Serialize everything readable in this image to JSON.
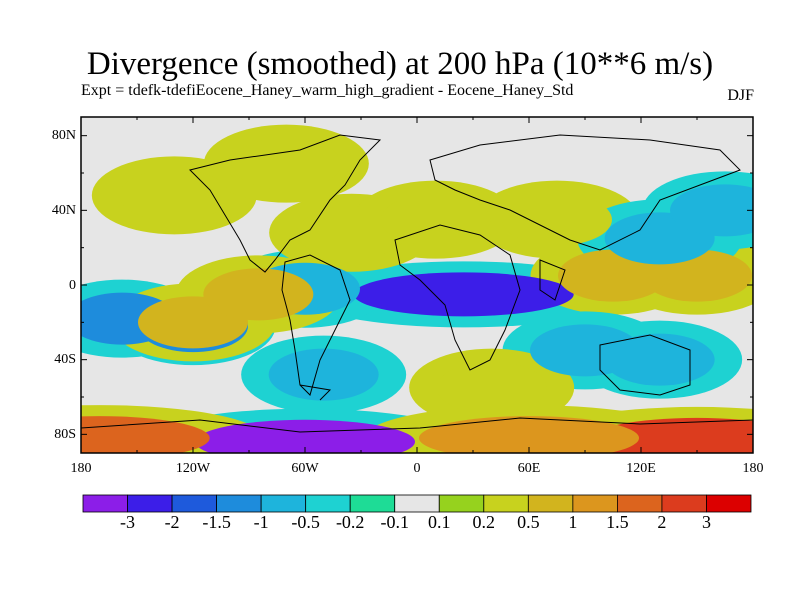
{
  "title": "Divergence (smoothed) at 200 hPa (10**6 m/s)",
  "subtitle": "Expt = tdefk-tdefiEocene_Haney_warm_high_gradient - Eocene_Haney_Std",
  "season": "DJF",
  "lat_labels": [
    "80N",
    "40N",
    "0",
    "40S",
    "80S"
  ],
  "lon_labels": [
    "180",
    "120W",
    "60W",
    "0",
    "60E",
    "120E",
    "180"
  ],
  "colorbar": {
    "labels": [
      "-3",
      "-2",
      "-1.5",
      "-1",
      "-0.5",
      "-0.2",
      "-0.1",
      "0.1",
      "0.2",
      "0.5",
      "1",
      "1.5",
      "2",
      "3"
    ],
    "colors": [
      "#8c1ee8",
      "#3c1ee8",
      "#1e5adc",
      "#1e8cdc",
      "#1eb4dc",
      "#1ed2d2",
      "#1edc96",
      "#e6e6e6",
      "#96d21e",
      "#c8d21e",
      "#d2b41e",
      "#dc961e",
      "#dc641e",
      "#dc3c1e",
      "#dc0000"
    ]
  },
  "chart_data": {
    "type": "heatmap",
    "variable": "Divergence (smoothed) at 200 hPa",
    "units": "10**6 m/s",
    "season": "DJF",
    "projection": "cylindrical equidistant",
    "lon_range": [
      -180,
      180
    ],
    "lat_range": [
      -90,
      90
    ],
    "contour_levels": [
      -3,
      -2,
      -1.5,
      -1,
      -0.5,
      -0.2,
      -0.1,
      0.1,
      0.2,
      0.5,
      1,
      1.5,
      2,
      3
    ],
    "features": [
      {
        "lon": -120,
        "lat": -22,
        "value": -1.0
      },
      {
        "lon": -158,
        "lat": -18,
        "value": -1.0
      },
      {
        "lon": 25,
        "lat": -5,
        "value": -2.0
      },
      {
        "lon": -50,
        "lat": -48,
        "value": -0.5
      },
      {
        "lon": -60,
        "lat": -2,
        "value": -0.5
      },
      {
        "lon": -120,
        "lat": -20,
        "value": 1.0
      },
      {
        "lon": -85,
        "lat": -5,
        "value": 1.0
      },
      {
        "lon": 150,
        "lat": 5,
        "value": 1.0
      },
      {
        "lon": 105,
        "lat": 5,
        "value": 1.0
      },
      {
        "lon": 90,
        "lat": -35,
        "value": -0.5
      },
      {
        "lon": 130,
        "lat": -40,
        "value": -0.5
      },
      {
        "lon": 40,
        "lat": -55,
        "value": 0.5
      },
      {
        "lon": -60,
        "lat": -84,
        "value": -3.0
      },
      {
        "lon": -170,
        "lat": -82,
        "value": 2.0
      },
      {
        "lon": 150,
        "lat": -83,
        "value": 3.0
      },
      {
        "lon": 60,
        "lat": -82,
        "value": 1.5
      },
      {
        "lon": -35,
        "lat": 28,
        "value": 0.5
      },
      {
        "lon": 10,
        "lat": 35,
        "value": 0.5
      },
      {
        "lon": -130,
        "lat": 48,
        "value": 0.5
      },
      {
        "lon": -70,
        "lat": 65,
        "value": 0.5
      },
      {
        "lon": 75,
        "lat": 35,
        "value": 0.5
      },
      {
        "lon": 130,
        "lat": 25,
        "value": -0.5
      },
      {
        "lon": 165,
        "lat": 40,
        "value": -0.5
      }
    ]
  }
}
